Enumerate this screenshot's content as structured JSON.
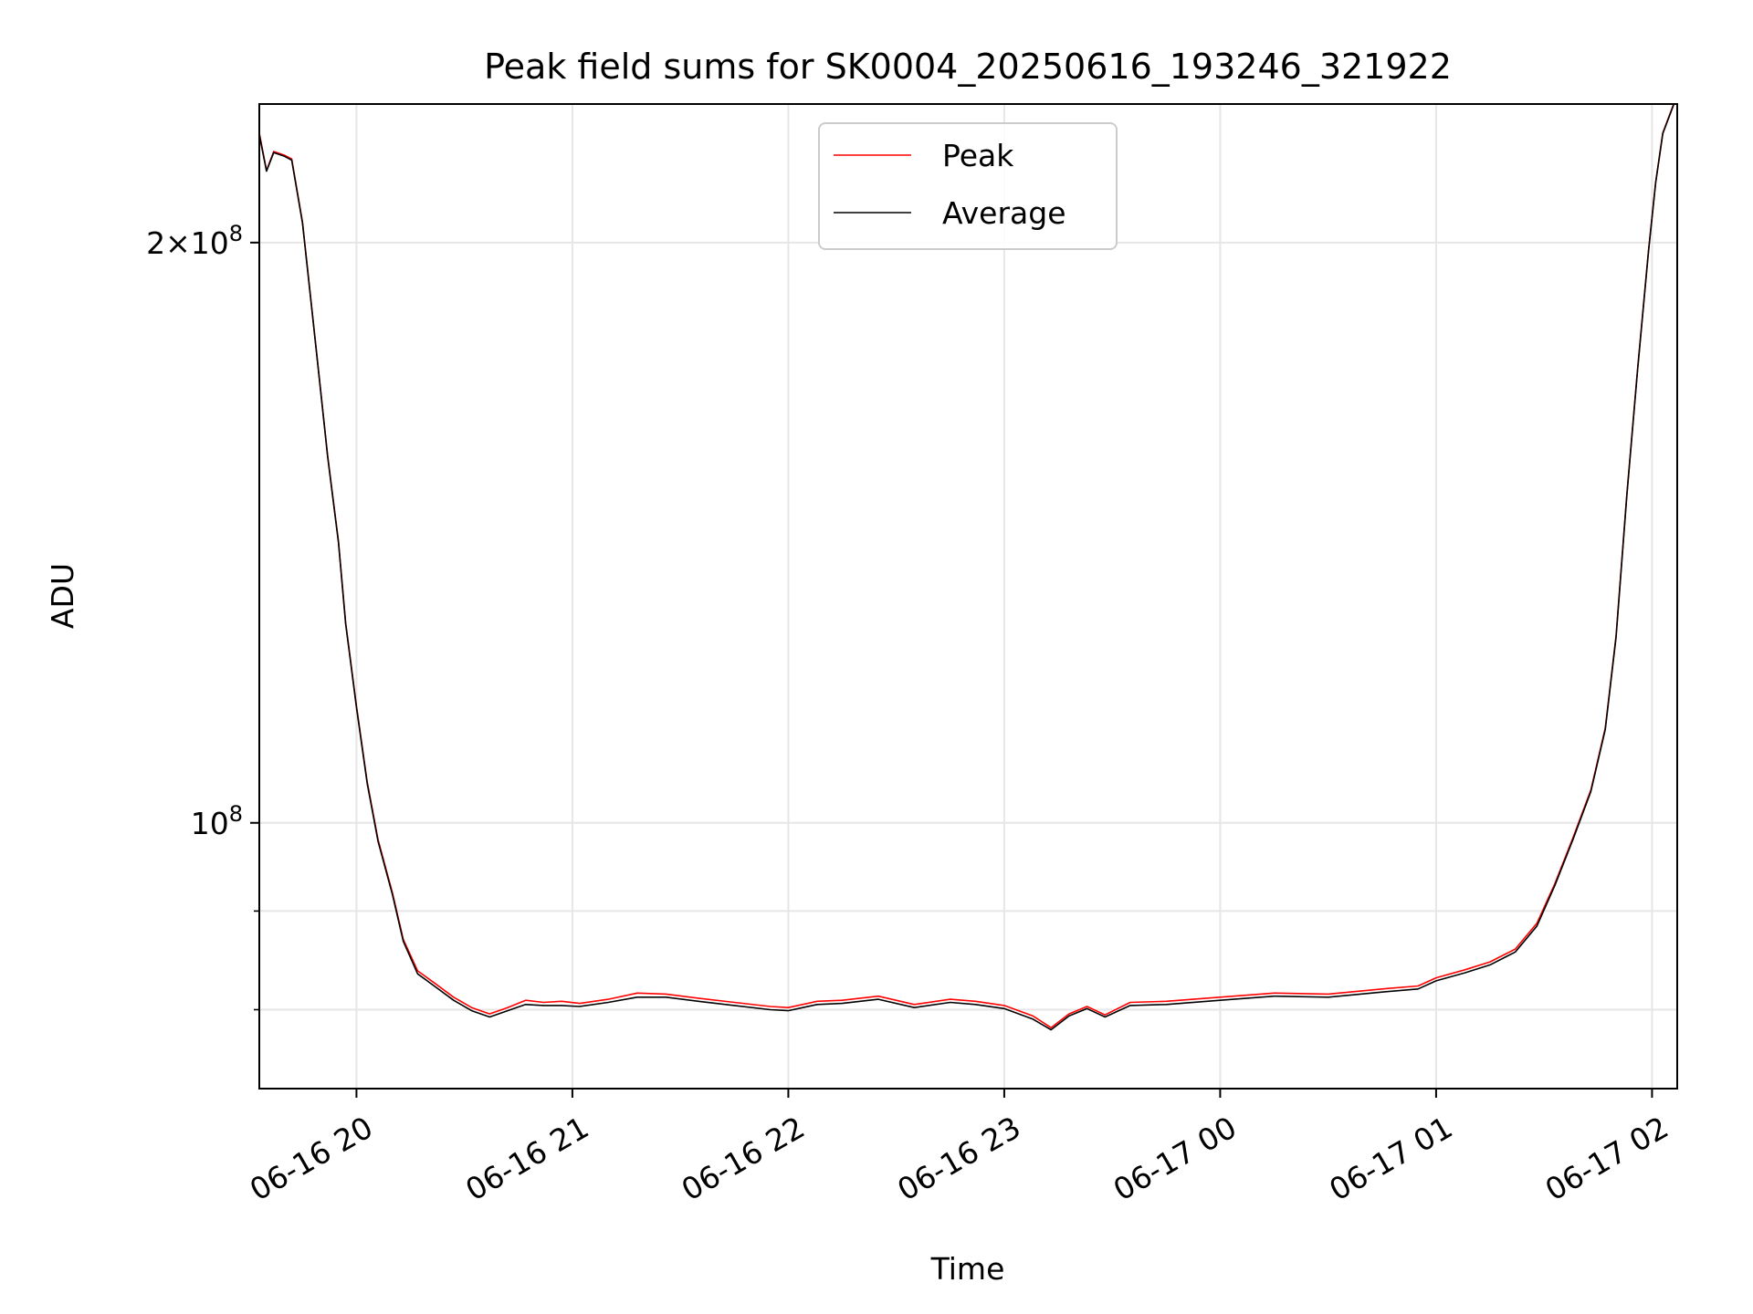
{
  "chart_data": {
    "type": "line",
    "title": "Peak field sums for SK0004_20250616_193246_321922",
    "xlabel": "Time",
    "ylabel": "ADU",
    "yscale": "log",
    "grid": true,
    "legend_position": "upper center",
    "xlim": [
      "2025-06-16 19:33",
      "2025-06-17 02:07"
    ],
    "ylim": [
      72800000,
      236000000
    ],
    "x_ticks": [
      "06-16 20",
      "06-16 21",
      "06-16 22",
      "06-16 23",
      "06-17 00",
      "06-17 01",
      "06-17 02"
    ],
    "y_ticks_labeled": [
      {
        "value": 100000000,
        "base": "10",
        "exp": "8",
        "mantissa": ""
      },
      {
        "value": 200000000,
        "base": "10",
        "exp": "8",
        "mantissa": "2×"
      }
    ],
    "y_ticks_minor": [
      80000000,
      90000000
    ],
    "colors": {
      "peak": "#ff0000",
      "average": "#000000",
      "grid": "#e6e6e6"
    },
    "series": [
      {
        "name": "Peak",
        "color": "#ff0000",
        "points": [
          [
            "2025-06-16 19:33",
            228000000
          ],
          [
            "2025-06-16 19:35",
            218000000
          ],
          [
            "2025-06-16 19:37",
            223000000
          ],
          [
            "2025-06-16 19:40",
            222000000
          ],
          [
            "2025-06-16 19:42",
            221000000
          ],
          [
            "2025-06-16 19:45",
            205000000
          ],
          [
            "2025-06-16 19:48",
            182000000
          ],
          [
            "2025-06-16 19:50",
            168000000
          ],
          [
            "2025-06-16 19:52",
            155000000
          ],
          [
            "2025-06-16 19:55",
            140000000
          ],
          [
            "2025-06-16 19:57",
            127000000
          ],
          [
            "2025-06-16 20:00",
            115000000
          ],
          [
            "2025-06-16 20:03",
            105000000
          ],
          [
            "2025-06-16 20:06",
            98000000
          ],
          [
            "2025-06-16 20:10",
            92000000
          ],
          [
            "2025-06-16 20:13",
            87000000
          ],
          [
            "2025-06-16 20:17",
            83800000
          ],
          [
            "2025-06-16 20:22",
            82500000
          ],
          [
            "2025-06-16 20:27",
            81200000
          ],
          [
            "2025-06-16 20:32",
            80200000
          ],
          [
            "2025-06-16 20:37",
            79600000
          ],
          [
            "2025-06-16 20:42",
            80200000
          ],
          [
            "2025-06-16 20:47",
            80900000
          ],
          [
            "2025-06-16 20:52",
            80700000
          ],
          [
            "2025-06-16 20:57",
            80800000
          ],
          [
            "2025-06-16 21:02",
            80600000
          ],
          [
            "2025-06-16 21:10",
            81000000
          ],
          [
            "2025-06-16 21:18",
            81600000
          ],
          [
            "2025-06-16 21:26",
            81500000
          ],
          [
            "2025-06-16 21:35",
            81100000
          ],
          [
            "2025-06-16 21:45",
            80700000
          ],
          [
            "2025-06-16 21:55",
            80300000
          ],
          [
            "2025-06-16 22:00",
            80200000
          ],
          [
            "2025-06-16 22:08",
            80800000
          ],
          [
            "2025-06-16 22:15",
            80900000
          ],
          [
            "2025-06-16 22:25",
            81300000
          ],
          [
            "2025-06-16 22:35",
            80500000
          ],
          [
            "2025-06-16 22:45",
            81000000
          ],
          [
            "2025-06-16 22:52",
            80800000
          ],
          [
            "2025-06-16 23:00",
            80400000
          ],
          [
            "2025-06-16 23:08",
            79400000
          ],
          [
            "2025-06-16 23:13",
            78300000
          ],
          [
            "2025-06-16 23:18",
            79600000
          ],
          [
            "2025-06-16 23:23",
            80300000
          ],
          [
            "2025-06-16 23:28",
            79500000
          ],
          [
            "2025-06-16 23:35",
            80700000
          ],
          [
            "2025-06-16 23:45",
            80800000
          ],
          [
            "2025-06-17 00:00",
            81200000
          ],
          [
            "2025-06-17 00:15",
            81600000
          ],
          [
            "2025-06-17 00:30",
            81500000
          ],
          [
            "2025-06-17 00:45",
            82000000
          ],
          [
            "2025-06-17 00:55",
            82300000
          ],
          [
            "2025-06-17 01:00",
            83100000
          ],
          [
            "2025-06-17 01:08",
            83900000
          ],
          [
            "2025-06-17 01:15",
            84700000
          ],
          [
            "2025-06-17 01:22",
            86000000
          ],
          [
            "2025-06-17 01:28",
            88700000
          ],
          [
            "2025-06-17 01:33",
            93000000
          ],
          [
            "2025-06-17 01:38",
            98200000
          ],
          [
            "2025-06-17 01:43",
            104000000
          ],
          [
            "2025-06-17 01:47",
            112000000
          ],
          [
            "2025-06-17 01:50",
            125000000
          ],
          [
            "2025-06-17 01:53",
            148000000
          ],
          [
            "2025-06-17 01:56",
            172000000
          ],
          [
            "2025-06-17 01:59",
            198000000
          ],
          [
            "2025-06-17 02:01",
            215000000
          ],
          [
            "2025-06-17 02:03",
            228000000
          ],
          [
            "2025-06-17 02:06",
            236000000
          ]
        ]
      },
      {
        "name": "Average",
        "color": "#000000",
        "points": [
          [
            "2025-06-16 19:33",
            227500000
          ],
          [
            "2025-06-16 19:35",
            217800000
          ],
          [
            "2025-06-16 19:37",
            222700000
          ],
          [
            "2025-06-16 19:40",
            221700000
          ],
          [
            "2025-06-16 19:42",
            220700000
          ],
          [
            "2025-06-16 19:45",
            204700000
          ],
          [
            "2025-06-16 19:48",
            181800000
          ],
          [
            "2025-06-16 19:50",
            167800000
          ],
          [
            "2025-06-16 19:52",
            154800000
          ],
          [
            "2025-06-16 19:55",
            139800000
          ],
          [
            "2025-06-16 19:57",
            126800000
          ],
          [
            "2025-06-16 20:00",
            114800000
          ],
          [
            "2025-06-16 20:03",
            104800000
          ],
          [
            "2025-06-16 20:06",
            97800000
          ],
          [
            "2025-06-16 20:10",
            91800000
          ],
          [
            "2025-06-16 20:13",
            86800000
          ],
          [
            "2025-06-16 20:17",
            83500000
          ],
          [
            "2025-06-16 20:22",
            82200000
          ],
          [
            "2025-06-16 20:27",
            80900000
          ],
          [
            "2025-06-16 20:32",
            79900000
          ],
          [
            "2025-06-16 20:37",
            79300000
          ],
          [
            "2025-06-16 20:42",
            79900000
          ],
          [
            "2025-06-16 20:47",
            80500000
          ],
          [
            "2025-06-16 20:52",
            80400000
          ],
          [
            "2025-06-16 20:57",
            80400000
          ],
          [
            "2025-06-16 21:02",
            80300000
          ],
          [
            "2025-06-16 21:10",
            80700000
          ],
          [
            "2025-06-16 21:18",
            81200000
          ],
          [
            "2025-06-16 21:26",
            81200000
          ],
          [
            "2025-06-16 21:35",
            80800000
          ],
          [
            "2025-06-16 21:45",
            80400000
          ],
          [
            "2025-06-16 21:55",
            80000000
          ],
          [
            "2025-06-16 22:00",
            79900000
          ],
          [
            "2025-06-16 22:08",
            80500000
          ],
          [
            "2025-06-16 22:15",
            80600000
          ],
          [
            "2025-06-16 22:25",
            81000000
          ],
          [
            "2025-06-16 22:35",
            80200000
          ],
          [
            "2025-06-16 22:45",
            80700000
          ],
          [
            "2025-06-16 22:52",
            80500000
          ],
          [
            "2025-06-16 23:00",
            80100000
          ],
          [
            "2025-06-16 23:08",
            79100000
          ],
          [
            "2025-06-16 23:13",
            78100000
          ],
          [
            "2025-06-16 23:18",
            79400000
          ],
          [
            "2025-06-16 23:23",
            80100000
          ],
          [
            "2025-06-16 23:28",
            79300000
          ],
          [
            "2025-06-16 23:35",
            80400000
          ],
          [
            "2025-06-16 23:45",
            80500000
          ],
          [
            "2025-06-17 00:00",
            80900000
          ],
          [
            "2025-06-17 00:15",
            81300000
          ],
          [
            "2025-06-17 00:30",
            81200000
          ],
          [
            "2025-06-17 00:45",
            81700000
          ],
          [
            "2025-06-17 00:55",
            82000000
          ],
          [
            "2025-06-17 01:00",
            82800000
          ],
          [
            "2025-06-17 01:08",
            83600000
          ],
          [
            "2025-06-17 01:15",
            84400000
          ],
          [
            "2025-06-17 01:22",
            85700000
          ],
          [
            "2025-06-17 01:28",
            88400000
          ],
          [
            "2025-06-17 01:33",
            92800000
          ],
          [
            "2025-06-17 01:38",
            98000000
          ],
          [
            "2025-06-17 01:43",
            103800000
          ],
          [
            "2025-06-17 01:47",
            111800000
          ],
          [
            "2025-06-17 01:50",
            124800000
          ],
          [
            "2025-06-17 01:53",
            147800000
          ],
          [
            "2025-06-17 01:56",
            171800000
          ],
          [
            "2025-06-17 01:59",
            197800000
          ],
          [
            "2025-06-17 02:01",
            214800000
          ],
          [
            "2025-06-17 02:03",
            227800000
          ],
          [
            "2025-06-17 02:06",
            235800000
          ]
        ]
      }
    ]
  }
}
